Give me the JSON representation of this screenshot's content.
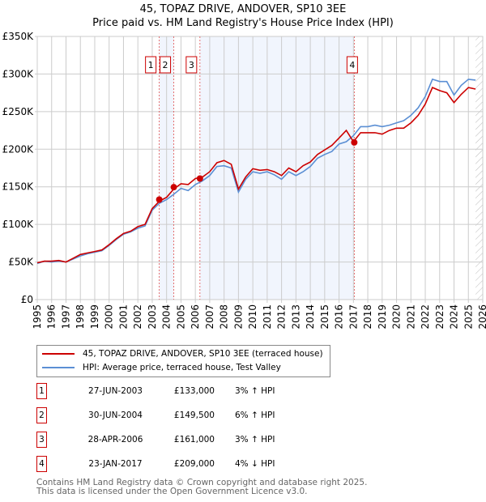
{
  "chart_data": {
    "type": "line",
    "title": "45, TOPAZ DRIVE, ANDOVER, SP10 3EE",
    "subtitle": "Price paid vs. HM Land Registry's House Price Index (HPI)",
    "xlim": [
      1995,
      2026
    ],
    "ylim": [
      0,
      350000
    ],
    "x_ticks": [
      "1995",
      "1996",
      "1997",
      "1998",
      "1999",
      "2000",
      "2001",
      "2002",
      "2003",
      "2004",
      "2005",
      "2006",
      "2007",
      "2008",
      "2009",
      "2010",
      "2011",
      "2012",
      "2013",
      "2014",
      "2015",
      "2016",
      "2017",
      "2018",
      "2019",
      "2020",
      "2021",
      "2022",
      "2023",
      "2024",
      "2025",
      "2026"
    ],
    "y_ticks": [
      {
        "v": 0,
        "l": "£0"
      },
      {
        "v": 50000,
        "l": "£50K"
      },
      {
        "v": 100000,
        "l": "£100K"
      },
      {
        "v": 150000,
        "l": "£150K"
      },
      {
        "v": 200000,
        "l": "£200K"
      },
      {
        "v": 250000,
        "l": "£250K"
      },
      {
        "v": 300000,
        "l": "£300K"
      },
      {
        "v": 350000,
        "l": "£350K"
      }
    ],
    "x_start": 1995,
    "x_step": 0.5,
    "series": [
      {
        "name": "45, TOPAZ DRIVE, ANDOVER, SP10 3EE (terraced house)",
        "color": "#cc0000",
        "values": [
          49,
          51,
          51,
          52,
          50,
          55,
          60,
          62,
          64,
          66,
          73,
          81,
          88,
          91,
          97,
          100,
          121,
          131,
          136,
          147,
          154,
          153,
          161,
          163,
          170,
          182,
          185,
          180,
          147,
          163,
          174,
          172,
          173,
          170,
          165,
          175,
          170,
          178,
          183,
          193,
          199,
          205,
          215,
          225,
          210,
          222,
          222,
          222,
          220,
          225,
          228,
          228,
          235,
          245,
          260,
          282,
          278,
          275,
          262,
          273,
          282,
          280
        ]
      },
      {
        "name": "HPI: Average price, terraced house, Test Valley",
        "color": "#5b8fd4",
        "values": [
          48,
          51,
          50,
          51,
          50,
          54,
          58,
          61,
          63,
          65,
          72,
          80,
          87,
          90,
          95,
          98,
          119,
          128,
          133,
          140,
          148,
          145,
          153,
          158,
          165,
          177,
          178,
          175,
          143,
          160,
          170,
          168,
          170,
          166,
          160,
          170,
          165,
          170,
          177,
          188,
          193,
          197,
          207,
          210,
          218,
          230,
          230,
          232,
          230,
          232,
          235,
          238,
          245,
          255,
          270,
          293,
          290,
          290,
          272,
          285,
          293,
          292
        ]
      }
    ],
    "value_unit": 1000,
    "sales": [
      {
        "n": "1",
        "x": 2003.49,
        "y": 133000
      },
      {
        "n": "2",
        "x": 2004.5,
        "y": 149500
      },
      {
        "n": "3",
        "x": 2006.32,
        "y": 161000
      },
      {
        "n": "4",
        "x": 2017.06,
        "y": 209000
      }
    ],
    "shaded": [
      [
        2003.49,
        2004.5
      ],
      [
        2006.32,
        2017.06
      ]
    ],
    "hatched_from": 2025.5,
    "grid": true
  },
  "legend": [
    {
      "label": "45, TOPAZ DRIVE, ANDOVER, SP10 3EE (terraced house)",
      "color": "#cc0000"
    },
    {
      "label": "HPI: Average price, terraced house, Test Valley",
      "color": "#5b8fd4"
    }
  ],
  "transactions": [
    {
      "n": "1",
      "date": "27-JUN-2003",
      "price": "£133,000",
      "hpi": "3% ↑ HPI"
    },
    {
      "n": "2",
      "date": "30-JUN-2004",
      "price": "£149,500",
      "hpi": "6% ↑ HPI"
    },
    {
      "n": "3",
      "date": "28-APR-2006",
      "price": "£161,000",
      "hpi": "3% ↑ HPI"
    },
    {
      "n": "4",
      "date": "23-JAN-2017",
      "price": "£209,000",
      "hpi": "4% ↓ HPI"
    }
  ],
  "footer": {
    "line1": "Contains HM Land Registry data © Crown copyright and database right 2025.",
    "line2": "This data is licensed under the Open Government Licence v3.0."
  }
}
